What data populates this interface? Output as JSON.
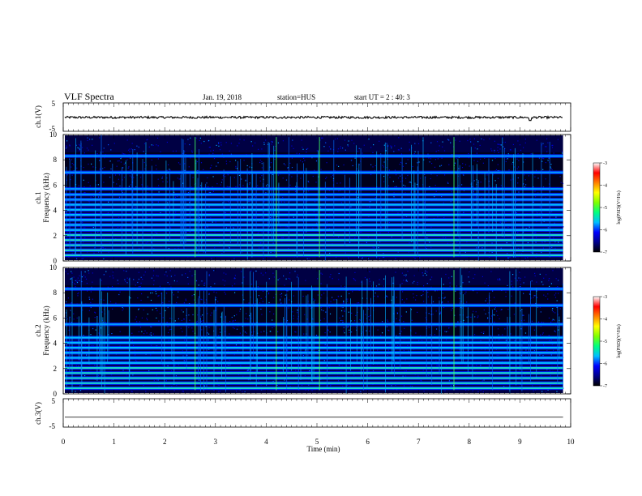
{
  "header": {
    "title": "VLF Spectra",
    "date": "Jan. 19, 2018",
    "station": "station=HUS",
    "start": "start UT =  2 : 40: 3"
  },
  "chart_data": [
    {
      "type": "line",
      "name": "ch1-waveform",
      "ylabel": "ch.1(V)",
      "ylim": [
        -5,
        5
      ],
      "ytick_labels": [
        "5",
        "-5"
      ],
      "xlim": [
        0,
        10
      ],
      "x_end": 9.85,
      "level": -0.1,
      "noise_amplitude": 0.4,
      "dips": [
        {
          "x": 9.2,
          "y": -1.2
        }
      ]
    },
    {
      "type": "heatmap",
      "name": "ch1-spectrogram",
      "ylabel_top": "ch.1",
      "ylabel": "Frequency (kHz)",
      "ylim": [
        0,
        10
      ],
      "ytick_labels": [
        "0",
        "2",
        "4",
        "6",
        "8",
        "10"
      ],
      "xlim": [
        0,
        10
      ],
      "x_end": 9.85,
      "bands_khz": [
        0.45,
        0.85,
        1.25,
        1.65,
        2.05,
        2.45,
        2.85,
        3.25,
        3.65,
        4.05,
        4.45,
        4.85,
        5.25,
        5.7,
        7.0,
        8.3
      ],
      "strong_bursts_min": [
        2.6,
        4.2,
        5.05,
        7.7
      ]
    },
    {
      "type": "heatmap",
      "name": "ch2-spectrogram",
      "ylabel_top": "ch.2",
      "ylabel": "Frequency (kHz)",
      "ylim": [
        0,
        10
      ],
      "ytick_labels": [
        "0",
        "2",
        "4",
        "6",
        "8",
        "10"
      ],
      "xlim": [
        0,
        10
      ],
      "x_end": 9.85,
      "bands_khz": [
        0.45,
        0.85,
        1.25,
        1.65,
        2.05,
        2.45,
        2.85,
        3.25,
        3.65,
        4.05,
        4.45,
        5.5,
        7.0,
        8.3
      ],
      "strong_bursts_min": [
        2.6,
        4.2,
        5.05,
        7.7
      ]
    },
    {
      "type": "line",
      "name": "ch3-waveform",
      "ylabel": "ch.3(V)",
      "ylim": [
        -5,
        5
      ],
      "ytick_labels": [
        "5",
        "-5"
      ],
      "xlim": [
        0,
        10
      ],
      "x_end": 9.85,
      "level": -1.5,
      "xlabel": "Time (min)",
      "xtick_labels": [
        "0",
        "1",
        "2",
        "3",
        "4",
        "5",
        "6",
        "7",
        "8",
        "9",
        "10"
      ]
    }
  ],
  "colorbars": [
    {
      "label": "log(PSD)(V²/Hz)",
      "ticks": [
        "-3",
        "-4",
        "-5",
        "-6",
        "-7"
      ],
      "range": [
        -7,
        -3
      ]
    },
    {
      "label": "log(PSD)(V²/Hz)",
      "ticks": [
        "-3",
        "-4",
        "-5",
        "-6",
        "-7"
      ],
      "range": [
        -7,
        -3
      ]
    }
  ],
  "colormap": [
    "#000000",
    "#00008b",
    "#0000ff",
    "#00bfff",
    "#00ff7f",
    "#7fff00",
    "#ffff00",
    "#ff8000",
    "#ff0000",
    "#ffffff"
  ]
}
